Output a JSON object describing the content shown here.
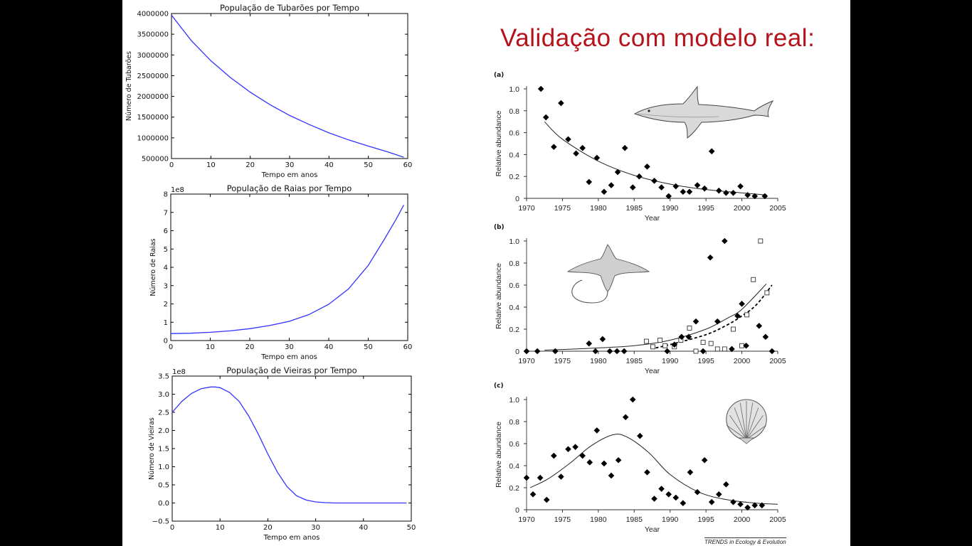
{
  "slide": {
    "title": "Validação com modelo real:",
    "credit": "TRENDS in Ecology & Evolution"
  },
  "colors": {
    "sim_line": "#3333ff",
    "title_red": "#b5121b",
    "ink": "#111111"
  },
  "chart_data": [
    {
      "type": "line",
      "title": "População de Tubarões por Tempo",
      "xlabel": "Tempo em anos",
      "ylabel": "Número de Tubarões",
      "xlim": [
        0,
        60
      ],
      "ylim": [
        500000,
        4000000
      ],
      "xticks": [
        0,
        10,
        20,
        30,
        40,
        50,
        60
      ],
      "yticks": [
        500000,
        1000000,
        1500000,
        2000000,
        2500000,
        3000000,
        3500000,
        4000000
      ],
      "ytick_labels": [
        "500000",
        "1000000",
        "1500000",
        "2000000",
        "2500000",
        "3000000",
        "3500000",
        "4000000"
      ],
      "multiplier": "",
      "series": [
        {
          "x": [
            0,
            5,
            10,
            15,
            20,
            25,
            30,
            35,
            40,
            45,
            50,
            55,
            59
          ],
          "y": [
            3960000,
            3350000,
            2860000,
            2450000,
            2100000,
            1800000,
            1540000,
            1320000,
            1120000,
            950000,
            800000,
            660000,
            530000
          ]
        }
      ]
    },
    {
      "type": "line",
      "title": "População de Raias por Tempo",
      "xlabel": "Tempo em anos",
      "ylabel": "Número de Raias",
      "xlim": [
        0,
        60
      ],
      "ylim": [
        0,
        8
      ],
      "xticks": [
        0,
        10,
        20,
        30,
        40,
        50,
        60
      ],
      "yticks": [
        0,
        1,
        2,
        3,
        4,
        5,
        6,
        7,
        8
      ],
      "ytick_labels": [
        "0",
        "1",
        "2",
        "3",
        "4",
        "5",
        "6",
        "7",
        "8"
      ],
      "multiplier": "1e8",
      "series": [
        {
          "x": [
            0,
            5,
            10,
            15,
            20,
            25,
            30,
            35,
            40,
            45,
            50,
            54,
            57,
            59
          ],
          "y": [
            0.38,
            0.4,
            0.45,
            0.53,
            0.65,
            0.82,
            1.05,
            1.42,
            1.98,
            2.82,
            4.1,
            5.5,
            6.6,
            7.4
          ]
        }
      ]
    },
    {
      "type": "line",
      "title": "População de Vieiras por Tempo",
      "xlabel": "Tempo em anos",
      "ylabel": "Número de Vieiras",
      "xlim": [
        0,
        50
      ],
      "ylim": [
        -0.5,
        3.5
      ],
      "xticks": [
        0,
        10,
        20,
        30,
        40,
        50
      ],
      "yticks": [
        -0.5,
        0.0,
        0.5,
        1.0,
        1.5,
        2.0,
        2.5,
        3.0,
        3.5
      ],
      "ytick_labels": [
        "−0.5",
        "0.0",
        "0.5",
        "1.0",
        "1.5",
        "2.0",
        "2.5",
        "3.0",
        "3.5"
      ],
      "multiplier": "1e8",
      "series": [
        {
          "x": [
            0,
            2,
            4,
            6,
            8,
            9,
            10,
            12,
            14,
            16,
            18,
            20,
            22,
            24,
            26,
            28,
            30,
            32,
            34,
            40,
            49
          ],
          "y": [
            2.5,
            2.8,
            3.02,
            3.15,
            3.2,
            3.2,
            3.18,
            3.05,
            2.8,
            2.4,
            1.9,
            1.35,
            0.85,
            0.45,
            0.2,
            0.08,
            0.03,
            0.01,
            0.0,
            0.0,
            0.0
          ]
        }
      ]
    },
    {
      "type": "scatter",
      "panel": "(a)",
      "title": "",
      "xlabel": "Year",
      "ylabel": "Relative abundance",
      "xlim": [
        1970,
        2005
      ],
      "ylim": [
        0,
        1.0
      ],
      "xticks": [
        1970,
        1975,
        1980,
        1985,
        1990,
        1995,
        2000,
        2005
      ],
      "yticks": [
        0,
        0.2,
        0.4,
        0.6,
        0.8,
        1.0
      ],
      "ytick_labels": [
        "0",
        "0.2",
        "0.4",
        "0.6",
        "0.8",
        "1.0"
      ],
      "icon": "shark-icon",
      "points": [
        [
          1972,
          1.0
        ],
        [
          1972.7,
          0.74
        ],
        [
          1973.8,
          0.47
        ],
        [
          1974.8,
          0.87
        ],
        [
          1975.8,
          0.54
        ],
        [
          1976.9,
          0.41
        ],
        [
          1977.8,
          0.46
        ],
        [
          1978.7,
          0.15
        ],
        [
          1979.8,
          0.37
        ],
        [
          1980.8,
          0.06
        ],
        [
          1981.8,
          0.12
        ],
        [
          1982.7,
          0.24
        ],
        [
          1983.7,
          0.46
        ],
        [
          1984.8,
          0.1
        ],
        [
          1985.7,
          0.2
        ],
        [
          1986.8,
          0.29
        ],
        [
          1987.8,
          0.16
        ],
        [
          1988.8,
          0.1
        ],
        [
          1989.8,
          0.02
        ],
        [
          1990.8,
          0.11
        ],
        [
          1991.8,
          0.06
        ],
        [
          1992.7,
          0.06
        ],
        [
          1993.8,
          0.12
        ],
        [
          1994.8,
          0.09
        ],
        [
          1995.8,
          0.43
        ],
        [
          1996.8,
          0.07
        ],
        [
          1997.8,
          0.05
        ],
        [
          1998.8,
          0.05
        ],
        [
          1999.8,
          0.11
        ],
        [
          2000.8,
          0.03
        ],
        [
          2001.8,
          0.02
        ],
        [
          2003.2,
          0.02
        ]
      ],
      "fit_x": [
        1972.5,
        1975,
        1980,
        1985,
        1990,
        1995,
        2000,
        2003.5
      ],
      "fit_y": [
        0.7,
        0.54,
        0.34,
        0.21,
        0.13,
        0.08,
        0.05,
        0.03
      ]
    },
    {
      "type": "scatter",
      "panel": "(b)",
      "title": "",
      "xlabel": "Year",
      "ylabel": "Relative abundance",
      "xlim": [
        1970,
        2005
      ],
      "ylim": [
        0,
        1.0
      ],
      "xticks": [
        1970,
        1975,
        1980,
        1985,
        1990,
        1995,
        2000,
        2005
      ],
      "yticks": [
        0,
        0.2,
        0.4,
        0.6,
        0.8,
        1.0
      ],
      "ytick_labels": [
        "0",
        "0.2",
        "0.4",
        "0.6",
        "0.8",
        "1.0"
      ],
      "icon": "ray-icon",
      "points": [
        [
          1970,
          0
        ],
        [
          1971.5,
          0
        ],
        [
          1974,
          0
        ],
        [
          1978.7,
          0.07
        ],
        [
          1979.6,
          0
        ],
        [
          1980.6,
          0.11
        ],
        [
          1981.6,
          0
        ],
        [
          1982.6,
          0
        ],
        [
          1983.6,
          0
        ],
        [
          1989.6,
          0
        ],
        [
          1990.6,
          0.06
        ],
        [
          1991.6,
          0.13
        ],
        [
          1992.6,
          0.13
        ],
        [
          1993.6,
          0.27
        ],
        [
          1994.6,
          0
        ],
        [
          1995.6,
          0.85
        ],
        [
          1996.6,
          0.27
        ],
        [
          1997.6,
          1.0
        ],
        [
          1998.6,
          0.02
        ],
        [
          1999.4,
          0.32
        ],
        [
          2000,
          0.43
        ],
        [
          2000.6,
          0.05
        ],
        [
          2002.4,
          0.23
        ],
        [
          2003.3,
          0.13
        ],
        [
          2004.2,
          0
        ]
      ],
      "points_open": [
        [
          1986.7,
          0.09
        ],
        [
          1987.6,
          0.04
        ],
        [
          1988.6,
          0.1
        ],
        [
          1989.3,
          0.05
        ],
        [
          1990.6,
          0.04
        ],
        [
          1991.5,
          0.1
        ],
        [
          1992.7,
          0.21
        ],
        [
          1993.6,
          0
        ],
        [
          1994.6,
          0.08
        ],
        [
          1995.7,
          0.07
        ],
        [
          1996.6,
          0.02
        ],
        [
          1997.6,
          0.02
        ],
        [
          1998.8,
          0.2
        ],
        [
          2000,
          0.05
        ],
        [
          2000.7,
          0.33
        ],
        [
          2001.6,
          0.65
        ],
        [
          2002.6,
          1.0
        ],
        [
          2003.5,
          0.53
        ]
      ],
      "fit_x": [
        1972.5,
        1975,
        1980,
        1985,
        1990,
        1995,
        1998,
        2000,
        2003.4
      ],
      "fit_y": [
        0.01,
        0.015,
        0.03,
        0.05,
        0.1,
        0.2,
        0.3,
        0.38,
        0.61
      ],
      "fit2_x": [
        1988,
        1990,
        1995,
        1998,
        2000,
        2002,
        2004.2
      ],
      "fit2_y": [
        0.03,
        0.06,
        0.15,
        0.24,
        0.32,
        0.42,
        0.6
      ]
    },
    {
      "type": "scatter",
      "panel": "(c)",
      "title": "",
      "xlabel": "Year",
      "ylabel": "Relative abundance",
      "xlim": [
        1970,
        2005
      ],
      "ylim": [
        0,
        1.0
      ],
      "xticks": [
        1970,
        1975,
        1980,
        1985,
        1990,
        1995,
        2000,
        2005
      ],
      "yticks": [
        0,
        0.2,
        0.4,
        0.6,
        0.8,
        1.0
      ],
      "ytick_labels": [
        "0",
        "0.2",
        "0.4",
        "0.6",
        "0.8",
        "1.0"
      ],
      "icon": "scallop-icon",
      "points": [
        [
          1970,
          0.29
        ],
        [
          1970.9,
          0.14
        ],
        [
          1971.9,
          0.29
        ],
        [
          1972.8,
          0.09
        ],
        [
          1973.8,
          0.49
        ],
        [
          1974.8,
          0.3
        ],
        [
          1975.8,
          0.55
        ],
        [
          1976.8,
          0.57
        ],
        [
          1977.8,
          0.49
        ],
        [
          1978.8,
          0.43
        ],
        [
          1979.8,
          0.72
        ],
        [
          1980.8,
          0.42
        ],
        [
          1981.8,
          0.31
        ],
        [
          1982.8,
          0.45
        ],
        [
          1983.8,
          0.84
        ],
        [
          1984.8,
          1.0
        ],
        [
          1985.8,
          0.67
        ],
        [
          1986.8,
          0.34
        ],
        [
          1987.8,
          0.1
        ],
        [
          1988.8,
          0.19
        ],
        [
          1989.8,
          0.14
        ],
        [
          1990.8,
          0.11
        ],
        [
          1991.8,
          0.06
        ],
        [
          1992.8,
          0.34
        ],
        [
          1993.8,
          0.16
        ],
        [
          1994.8,
          0.45
        ],
        [
          1995.8,
          0.07
        ],
        [
          1996.8,
          0.14
        ],
        [
          1997.8,
          0.23
        ],
        [
          1998.8,
          0.07
        ],
        [
          1999.8,
          0.05
        ],
        [
          2000.8,
          0.02
        ],
        [
          2001.8,
          0.04
        ],
        [
          2002.8,
          0.04
        ]
      ],
      "fit_x": [
        1970.5,
        1973,
        1976,
        1979,
        1982,
        1984,
        1987,
        1990,
        1994,
        1998,
        2002,
        2005
      ],
      "fit_y": [
        0.2,
        0.28,
        0.42,
        0.58,
        0.68,
        0.66,
        0.52,
        0.32,
        0.16,
        0.09,
        0.06,
        0.05
      ]
    }
  ]
}
